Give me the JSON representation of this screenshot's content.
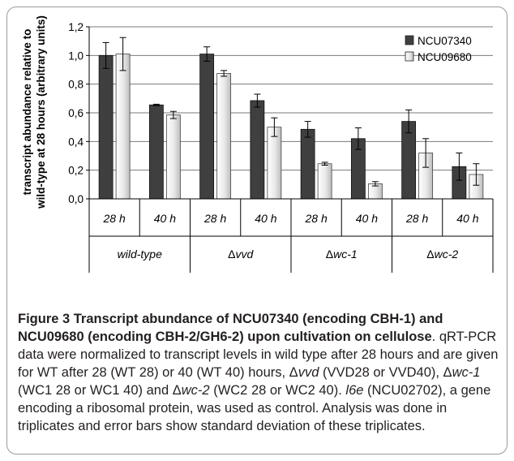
{
  "chart_data": {
    "type": "bar",
    "ylabel": "transcript abundance relative to wild-type at 28 hours (arbitrary units)",
    "ylabel_lines": [
      "transcript abundance relative to",
      "wild-type at 28 hours (arbitrary units)"
    ],
    "ylim": [
      0,
      1.2
    ],
    "yticks": [
      "0,0",
      "0,2",
      "0,4",
      "0,6",
      "0,8",
      "1,0",
      "1,2"
    ],
    "categories": [
      "28 h",
      "40 h",
      "28 h",
      "40 h",
      "28 h",
      "40 h",
      "28 h",
      "40 h"
    ],
    "groups": [
      {
        "label": "wild-type",
        "italic_all": true
      },
      {
        "prefix": "Δ",
        "label": "vvd"
      },
      {
        "prefix": "Δ",
        "label": "wc-1"
      },
      {
        "prefix": "Δ",
        "label": "wc-2"
      }
    ],
    "series": [
      {
        "name": "NCU07340",
        "color": "#3f3f3f",
        "values": [
          1.0,
          0.655,
          1.01,
          0.685,
          0.485,
          0.42,
          0.54,
          0.225
        ],
        "errors": [
          0.09,
          0.005,
          0.05,
          0.045,
          0.055,
          0.075,
          0.08,
          0.095
        ]
      },
      {
        "name": "NCU09680",
        "color": "#e4e4e4",
        "values": [
          1.01,
          0.585,
          0.875,
          0.5,
          0.245,
          0.105,
          0.32,
          0.17
        ],
        "errors": [
          0.115,
          0.025,
          0.02,
          0.065,
          0.01,
          0.015,
          0.1,
          0.075
        ]
      }
    ],
    "grid": true,
    "legend_position": "top-right"
  },
  "caption": {
    "title": "Figure 3 Transcript abundance of NCU07340 (encoding CBH-1) and NCU09680 (encoding CBH-2/GH6-2) upon cultivation on cellulose",
    "t1": ". qRT-PCR data were normalized to transcript levels in wild type after 28 hours and are given for WT after 28 (WT 28) or 40 (WT 40) hours, Δ",
    "i1": "vvd",
    "t2": " (VVD28 or VVD40), Δ",
    "i2": "wc-1",
    "t3": " (WC1 28 or WC1 40) and Δ",
    "i3": "wc-2",
    "t4": " (WC2 28 or WC2 40). ",
    "i4": "l6e",
    "t5": " (NCU02702), a gene encoding a ribosomal protein, was used as control. Analysis was done in triplicates and error bars show standard deviation of these triplicates."
  }
}
